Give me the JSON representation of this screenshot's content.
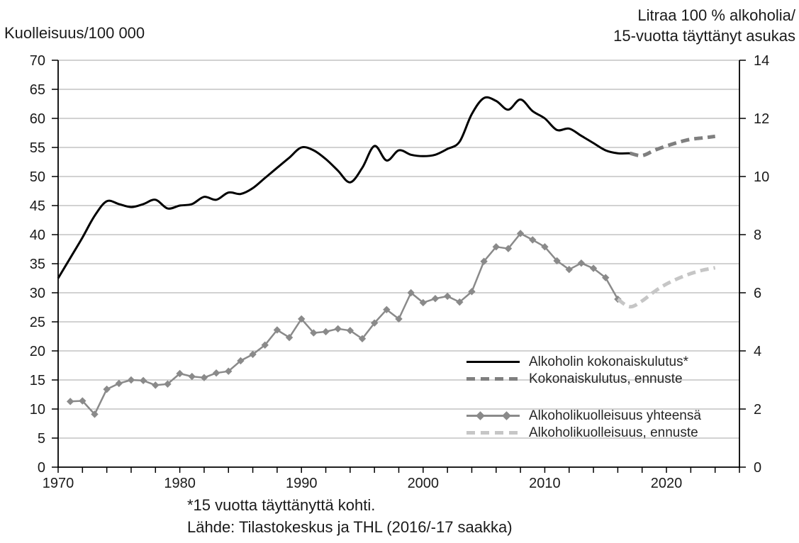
{
  "titles": {
    "left_axis_title": "Kuolleisuus/100 000",
    "right_axis_title_line1": "Litraa 100 % alkoholia/",
    "right_axis_title_line2": "15-vuotta täyttänyt asukas"
  },
  "footnotes": {
    "line1": "*15 vuotta täyttänyttä kohti.",
    "line2": "Lähde: Tilastokeskus ja THL (2016/-17 saakka)"
  },
  "legend": {
    "items": [
      {
        "label": "Alkoholin kokonaiskulutus*",
        "swatch": "solid-black-line"
      },
      {
        "label": "Kokonaiskulutus, ennuste",
        "swatch": "gray-dashed-line"
      },
      {
        "label": "Alkoholikuolleisuus yhteensä",
        "swatch": "gray-line-with-diamond-markers"
      },
      {
        "label": "Alkoholikuolleisuus, ennuste",
        "swatch": "light-gray-dashed-line"
      }
    ]
  },
  "colors": {
    "consumption": "#000000",
    "consumption_forecast": "#7f7f7f",
    "mortality": "#8a8a8a",
    "mortality_forecast": "#c6c6c6",
    "gridline": "#a6a6a6",
    "axis": "#000000",
    "text": "#1a1a1a"
  },
  "chart_data": {
    "type": "line",
    "title": "",
    "grid": true,
    "legend_position": "inside-right",
    "x_axis": {
      "min": 1970,
      "max": 2026,
      "minor_tick_step": 2,
      "labeled_ticks": [
        1970,
        1980,
        1990,
        2000,
        2010,
        2020
      ]
    },
    "left_axis": {
      "label": "Kuolleisuus/100 000",
      "min": 0,
      "max": 70,
      "ticks": [
        0,
        5,
        10,
        15,
        20,
        25,
        30,
        35,
        40,
        45,
        50,
        55,
        60,
        65,
        70
      ]
    },
    "right_axis": {
      "label": "Litraa 100 % alkoholia/ 15-vuotta täyttänyt asukas",
      "min": 0,
      "max": 14,
      "ticks": [
        0,
        2,
        4,
        6,
        8,
        10,
        12,
        14
      ]
    },
    "series": [
      {
        "name": "Alkoholin kokonaiskulutus*",
        "axis": "right",
        "style": "smooth",
        "color": "#000000",
        "width": 3,
        "dash": null,
        "markers": false,
        "x": [
          1970,
          1971,
          1972,
          1973,
          1974,
          1975,
          1976,
          1977,
          1978,
          1979,
          1980,
          1981,
          1982,
          1983,
          1984,
          1985,
          1986,
          1987,
          1988,
          1989,
          1990,
          1991,
          1992,
          1993,
          1994,
          1995,
          1996,
          1997,
          1998,
          1999,
          2000,
          2001,
          2002,
          2003,
          2004,
          2005,
          2006,
          2007,
          2008,
          2009,
          2010,
          2011,
          2012,
          2013,
          2014,
          2015,
          2016,
          2017
        ],
        "values": [
          6.5,
          7.2,
          7.9,
          8.65,
          9.15,
          9.05,
          8.95,
          9.05,
          9.2,
          8.9,
          9.0,
          9.05,
          9.3,
          9.2,
          9.45,
          9.4,
          9.6,
          9.95,
          10.3,
          10.65,
          11.0,
          10.9,
          10.6,
          10.2,
          9.8,
          10.3,
          11.05,
          10.55,
          10.9,
          10.75,
          10.7,
          10.75,
          10.95,
          11.2,
          12.15,
          12.7,
          12.6,
          12.3,
          12.65,
          12.25,
          12.0,
          11.6,
          11.65,
          11.4,
          11.15,
          10.9,
          10.8,
          10.8
        ]
      },
      {
        "name": "Kokonaiskulutus, ennuste",
        "axis": "right",
        "style": "smooth",
        "color": "#7f7f7f",
        "width": 5,
        "dash": [
          12,
          7
        ],
        "markers": false,
        "x": [
          2017,
          2018,
          2019,
          2020,
          2021,
          2022,
          2023,
          2024
        ],
        "values": [
          10.8,
          10.72,
          10.9,
          11.05,
          11.18,
          11.28,
          11.33,
          11.38
        ]
      },
      {
        "name": "Alkoholikuolleisuus yhteensä",
        "axis": "left",
        "style": "straight",
        "color": "#8a8a8a",
        "width": 2.5,
        "dash": null,
        "markers": true,
        "marker_shape": "diamond",
        "x": [
          1971,
          1972,
          1973,
          1974,
          1975,
          1976,
          1977,
          1978,
          1979,
          1980,
          1981,
          1982,
          1983,
          1984,
          1985,
          1986,
          1987,
          1988,
          1989,
          1990,
          1991,
          1992,
          1993,
          1994,
          1995,
          1996,
          1997,
          1998,
          1999,
          2000,
          2001,
          2002,
          2003,
          2004,
          2005,
          2006,
          2007,
          2008,
          2009,
          2010,
          2011,
          2012,
          2013,
          2014,
          2015,
          2016
        ],
        "values": [
          11.3,
          11.4,
          9.1,
          13.4,
          14.4,
          15.0,
          14.9,
          14.1,
          14.3,
          16.1,
          15.6,
          15.4,
          16.2,
          16.5,
          18.3,
          19.4,
          21.0,
          23.6,
          22.3,
          25.5,
          23.1,
          23.3,
          23.8,
          23.5,
          22.1,
          24.8,
          27.1,
          25.5,
          30.0,
          28.3,
          29.0,
          29.4,
          28.4,
          30.2,
          35.4,
          37.9,
          37.6,
          40.2,
          39.1,
          37.9,
          35.5,
          34.0,
          35.1,
          34.2,
          32.6,
          28.9
        ]
      },
      {
        "name": "Alkoholikuolleisuus, ennuste",
        "axis": "left",
        "style": "smooth",
        "color": "#c6c6c6",
        "width": 5,
        "dash": [
          12,
          7
        ],
        "markers": false,
        "x": [
          2016,
          2017,
          2018,
          2019,
          2020,
          2021,
          2022,
          2023,
          2024
        ],
        "values": [
          28.9,
          27.6,
          28.6,
          30.2,
          31.5,
          32.5,
          33.3,
          33.9,
          34.3
        ]
      }
    ]
  }
}
